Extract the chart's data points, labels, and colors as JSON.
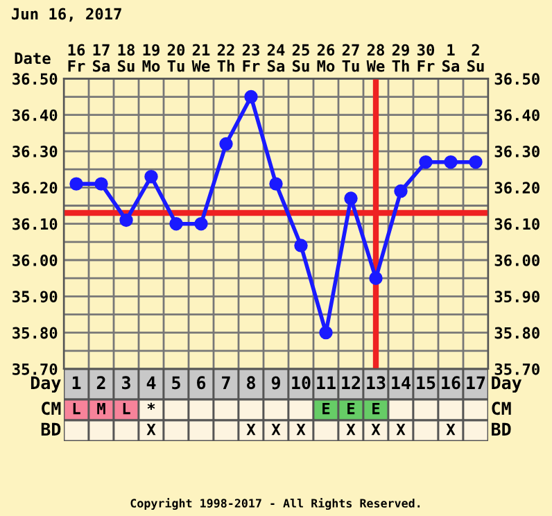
{
  "chart_data": [
    {
      "type": "line",
      "title": "Jun 16, 2017",
      "xlabel": "Date",
      "categories": [
        "16\nFr",
        "17\nSa",
        "18\nSu",
        "19\nMo",
        "20\nTu",
        "21\nWe",
        "22\nTh",
        "23\nFr",
        "24\nSa",
        "25\nSu",
        "26\nMo",
        "27\nTu",
        "28\nWe",
        "29\nTh",
        "30\nFr",
        "1\nSa",
        "2\nSu"
      ],
      "series": [
        {
          "color": "#1a1aff",
          "values": [
            36.21,
            36.21,
            36.11,
            36.23,
            36.1,
            36.1,
            36.32,
            36.45,
            36.21,
            36.04,
            35.8,
            36.17,
            35.95,
            36.19,
            36.27,
            36.27,
            36.27
          ]
        }
      ],
      "ylim": [
        35.7,
        36.5
      ],
      "yticks": [
        {
          "value": 35.7,
          "label": "35.70"
        },
        {
          "value": 35.8,
          "label": "35.80"
        },
        {
          "value": 35.9,
          "label": "35.90"
        },
        {
          "value": 36.0,
          "label": "36.00"
        },
        {
          "value": 36.1,
          "label": "36.10"
        },
        {
          "value": 36.2,
          "label": "36.20"
        },
        {
          "value": 36.3,
          "label": "36.30"
        },
        {
          "value": 36.4,
          "label": "36.40"
        },
        {
          "value": 36.5,
          "label": "36.50"
        }
      ],
      "y2lim": [
        35.7,
        36.5
      ],
      "y2ticks": [
        {
          "value": 35.7,
          "label": "35.70"
        },
        {
          "value": 35.8,
          "label": "35.80"
        },
        {
          "value": 35.9,
          "label": "35.90"
        },
        {
          "value": 36.0,
          "label": "36.00"
        },
        {
          "value": 36.1,
          "label": "36.10"
        },
        {
          "value": 36.2,
          "label": "36.20"
        },
        {
          "value": 36.3,
          "label": "36.30"
        },
        {
          "value": 36.4,
          "label": "36.40"
        },
        {
          "value": 36.5,
          "label": "36.50"
        }
      ],
      "grid": true,
      "marker": "circle",
      "line_style": "solid",
      "ref_lines": [
        {
          "axis": "y",
          "value": 36.13,
          "color": "#ee2222"
        },
        {
          "axis": "x",
          "value": "28\nWe",
          "color": "#ee2222"
        }
      ]
    },
    {
      "type": "heatmap",
      "xlabel": "Day",
      "categories": [
        "1",
        "2",
        "3",
        "4",
        "5",
        "6",
        "7",
        "8",
        "9",
        "10",
        "11",
        "12",
        "13",
        "14",
        "15",
        "16",
        "17"
      ],
      "y_categories": [
        "CM",
        "BD"
      ],
      "y2_categories": [
        "CM",
        "BD"
      ],
      "cells": [
        [
          null,
          null,
          null,
          null,
          null,
          null,
          null,
          null,
          null,
          null,
          null,
          null,
          null,
          null,
          null,
          null,
          null
        ],
        [
          null,
          null,
          null,
          null,
          null,
          null,
          null,
          null,
          null,
          null,
          null,
          null,
          null,
          null,
          null,
          null,
          null
        ]
      ],
      "cell_labels": [
        [
          "L",
          "M",
          "L",
          "*",
          null,
          null,
          null,
          null,
          null,
          null,
          "E",
          "E",
          "E",
          null,
          null,
          null,
          null
        ],
        [
          null,
          null,
          null,
          "X",
          null,
          null,
          null,
          "X",
          "X",
          "X",
          null,
          "X",
          "X",
          "X",
          null,
          "X",
          null
        ]
      ],
      "colors": [
        [
          "#f7839a",
          "#f7839a",
          "#f7839a",
          null,
          null,
          null,
          null,
          null,
          null,
          null,
          "#66cc66",
          "#66cc66",
          "#66cc66",
          null,
          null,
          null,
          null
        ],
        [
          null,
          null,
          null,
          null,
          null,
          null,
          null,
          null,
          null,
          null,
          null,
          null,
          null,
          null,
          null,
          null,
          null
        ]
      ],
      "annotations": [
        "Copyright 1998-2017 - All Rights Reserved."
      ]
    }
  ]
}
